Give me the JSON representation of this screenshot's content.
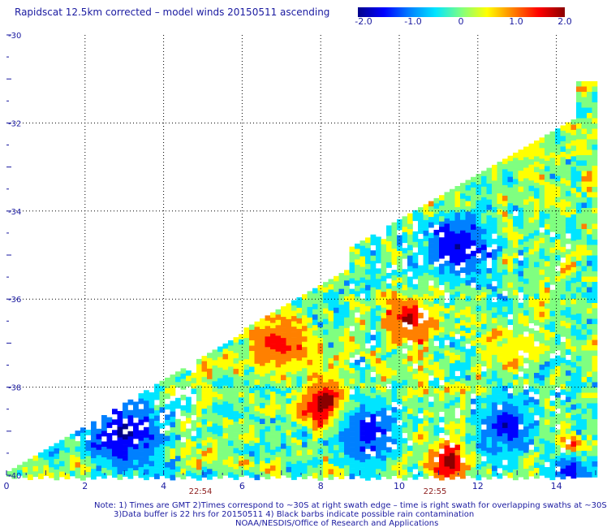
{
  "title": "Rapidscat 12.5km corrected – model winds 20150511 ascending",
  "colorbar": {
    "labels": [
      "-2.0",
      "-1.0",
      "0",
      "1.0",
      "2.0"
    ],
    "min": -2.0,
    "max": 2.0,
    "colors": [
      "#00008b",
      "#0000ff",
      "#0080ff",
      "#00e5ff",
      "#7fff80",
      "#ffff00",
      "#ff8000",
      "#ff0000",
      "#8b0000"
    ]
  },
  "axes": {
    "x_ticks": [
      "0",
      "2",
      "4",
      "6",
      "8",
      "10",
      "12",
      "14"
    ],
    "y_ticks": [
      "-30",
      "-32",
      "-34",
      "-36",
      "-38",
      "-40"
    ],
    "x_range": [
      0,
      15
    ],
    "y_range": [
      -40,
      -30
    ]
  },
  "time_labels": [
    {
      "text": "22:54",
      "x": 5
    },
    {
      "text": "22:55",
      "x": 11
    }
  ],
  "notes": [
    "Note: 1) Times are GMT 2)Times correspond to ~30S at right swath edge – time is right swath for overlapping swaths at ~30S",
    "3)Data buffer is 22 hrs for 20150511 4) Black barbs indicate possible rain contamination",
    "NOAA/NESDIS/Office of Research and Applications"
  ]
}
